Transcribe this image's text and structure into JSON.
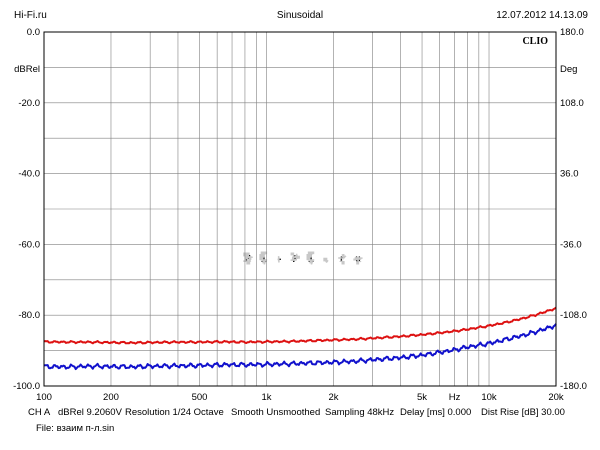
{
  "header": {
    "left": "Hi-Fi.ru",
    "center": "Sinusoidal",
    "right": "12.07.2012 14.13.09"
  },
  "footer": {
    "channel": "CH A",
    "dbrel": "dBRel 9.2060V",
    "resolution": "Resolution 1/24 Octave",
    "smooth": "Smooth Unsmoothed",
    "sampling": "Sampling 48kHz",
    "delay": "Delay [ms] 0.000",
    "dist_rise": "Dist Rise [dB] 30.00",
    "file": "File: взаим п-л.sin"
  },
  "chart_data": {
    "type": "line",
    "brand": "CLIO",
    "watermark": "Hi-Fi.ru",
    "xscale": "log",
    "xlim": [
      100,
      20000
    ],
    "ylim": [
      -100,
      0
    ],
    "y2lim": [
      -180,
      180
    ],
    "ylabel": "dBRel",
    "y2label": "Deg",
    "xlabel_unit": "Hz",
    "grid": true,
    "x_ticks": [
      {
        "value": 100,
        "label": "100"
      },
      {
        "value": 200,
        "label": "200"
      },
      {
        "value": 500,
        "label": "500"
      },
      {
        "value": 1000,
        "label": "1k"
      },
      {
        "value": 2000,
        "label": "2k"
      },
      {
        "value": 5000,
        "label": "5k"
      },
      {
        "value": 10000,
        "label": "10k"
      },
      {
        "value": 20000,
        "label": "20k"
      }
    ],
    "y_ticks": [
      {
        "value": 0,
        "label": "0.0"
      },
      {
        "value": -20,
        "label": "-20.0"
      },
      {
        "value": -40,
        "label": "-40.0"
      },
      {
        "value": -60,
        "label": "-60.0"
      },
      {
        "value": -80,
        "label": "-80.0"
      },
      {
        "value": -100,
        "label": "-100.0"
      }
    ],
    "y2_ticks": [
      {
        "value": 180,
        "label": "180.0"
      },
      {
        "value": 108,
        "label": "108.0"
      },
      {
        "value": 36,
        "label": "36.0"
      },
      {
        "value": -36,
        "label": "-36.0"
      },
      {
        "value": -108,
        "label": "-108.0"
      },
      {
        "value": -180,
        "label": "-180.0"
      }
    ],
    "series": [
      {
        "color": "#dd1111",
        "x": [
          100,
          130,
          160,
          200,
          250,
          300,
          400,
          500,
          650,
          800,
          1000,
          1300,
          1600,
          2000,
          2500,
          3000,
          4000,
          5000,
          6000,
          7000,
          8000,
          10000,
          12000,
          14000,
          16000,
          18000,
          20000
        ],
        "values": [
          -87.5,
          -87.6,
          -87.6,
          -87.7,
          -87.8,
          -87.7,
          -87.6,
          -87.6,
          -87.5,
          -87.6,
          -87.5,
          -87.4,
          -87.2,
          -87.0,
          -86.8,
          -86.5,
          -86.0,
          -85.5,
          -85.0,
          -84.5,
          -84.0,
          -83.0,
          -82.0,
          -81.0,
          -80.0,
          -79.0,
          -78.0
        ]
      },
      {
        "color": "#1111cc",
        "x": [
          100,
          130,
          160,
          200,
          250,
          300,
          400,
          500,
          650,
          800,
          1000,
          1300,
          1600,
          2000,
          2500,
          3000,
          4000,
          5000,
          6000,
          7000,
          8000,
          10000,
          12000,
          14000,
          16000,
          18000,
          20000
        ],
        "values": [
          -94.5,
          -94.6,
          -94.4,
          -94.5,
          -94.6,
          -94.4,
          -94.3,
          -94.2,
          -94.0,
          -94.0,
          -93.9,
          -93.7,
          -93.5,
          -93.3,
          -93.0,
          -92.6,
          -92.0,
          -91.3,
          -90.5,
          -89.8,
          -89.0,
          -88.0,
          -86.8,
          -85.8,
          -84.8,
          -83.8,
          -82.8
        ]
      }
    ]
  }
}
